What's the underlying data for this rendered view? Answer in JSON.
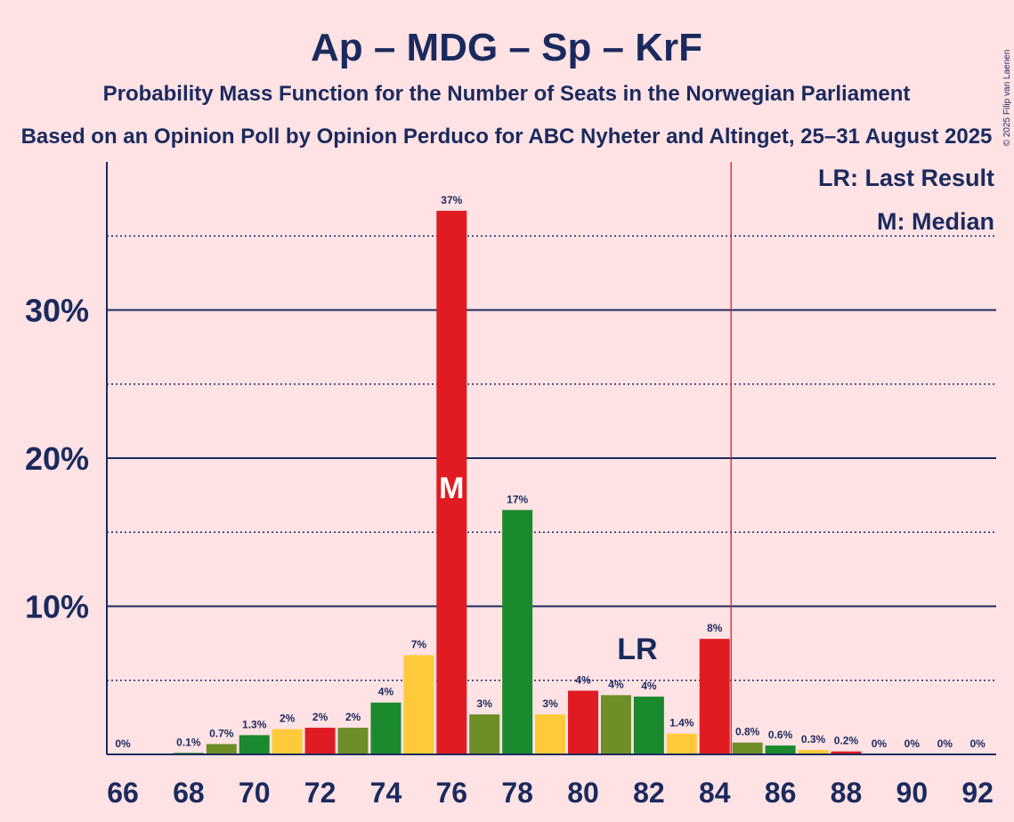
{
  "chart_data": {
    "type": "bar",
    "title": "Ap – MDG – Sp – KrF",
    "subtitle": "Probability Mass Function for the Number of Seats in the Norwegian Parliament",
    "subtitle2": "Based on an Opinion Poll by Opinion Perduco for ABC Nyheter and Altinget, 25–31 August 2025",
    "copyright": "© 2025 Filip van Laenen",
    "x": [
      66,
      67,
      68,
      69,
      70,
      71,
      72,
      73,
      74,
      75,
      76,
      77,
      78,
      79,
      80,
      81,
      82,
      83,
      84,
      85,
      86,
      87,
      88,
      89,
      90,
      91,
      92
    ],
    "values": [
      0,
      0,
      0.1,
      0.7,
      1.3,
      1.7,
      1.8,
      1.8,
      3.5,
      6.7,
      36.7,
      2.7,
      16.5,
      2.7,
      4.3,
      4.0,
      3.9,
      1.4,
      7.8,
      0.8,
      0.6,
      0.3,
      0.2,
      0,
      0,
      0,
      0
    ],
    "labels": [
      "0%",
      "",
      "0.1%",
      "0.7%",
      "1.3%",
      "2%",
      "2%",
      "2%",
      "4%",
      "7%",
      "37%",
      "3%",
      "17%",
      "3%",
      "4%",
      "4%",
      "4%",
      "1.4%",
      "8%",
      "0.8%",
      "0.6%",
      "0.3%",
      "0.2%",
      "0%",
      "0%",
      "0%",
      "0%"
    ],
    "colors": [
      "#E01B22",
      "#E01B22",
      "#1B8A2E",
      "#6E8E27",
      "#1B8A2E",
      "#FFCA3A",
      "#E01B22",
      "#6E8E27",
      "#1B8A2E",
      "#FFCA3A",
      "#E01B22",
      "#6E8E27",
      "#1B8A2E",
      "#FFCA3A",
      "#E01B22",
      "#6E8E27",
      "#1B8A2E",
      "#FFCA3A",
      "#E01B22",
      "#6E8E27",
      "#1B8A2E",
      "#FFCA3A",
      "#E01B22",
      "#6E8E27",
      "#1B8A2E",
      "#FFCA3A",
      "#E01B22"
    ],
    "xticks": [
      "66",
      "68",
      "70",
      "72",
      "74",
      "76",
      "78",
      "80",
      "82",
      "84",
      "86",
      "88",
      "90",
      "92"
    ],
    "yticks": [
      {
        "v": 10,
        "label": "10%"
      },
      {
        "v": 20,
        "label": "20%"
      },
      {
        "v": 30,
        "label": "30%"
      }
    ],
    "ylim": [
      0,
      40
    ],
    "majority_line": 84.5,
    "last_result_seat": 82,
    "median_seat": 76,
    "median_mark": "M",
    "last_result_mark": "LR",
    "legend": [
      "LR: Last Result",
      "M: Median"
    ]
  }
}
